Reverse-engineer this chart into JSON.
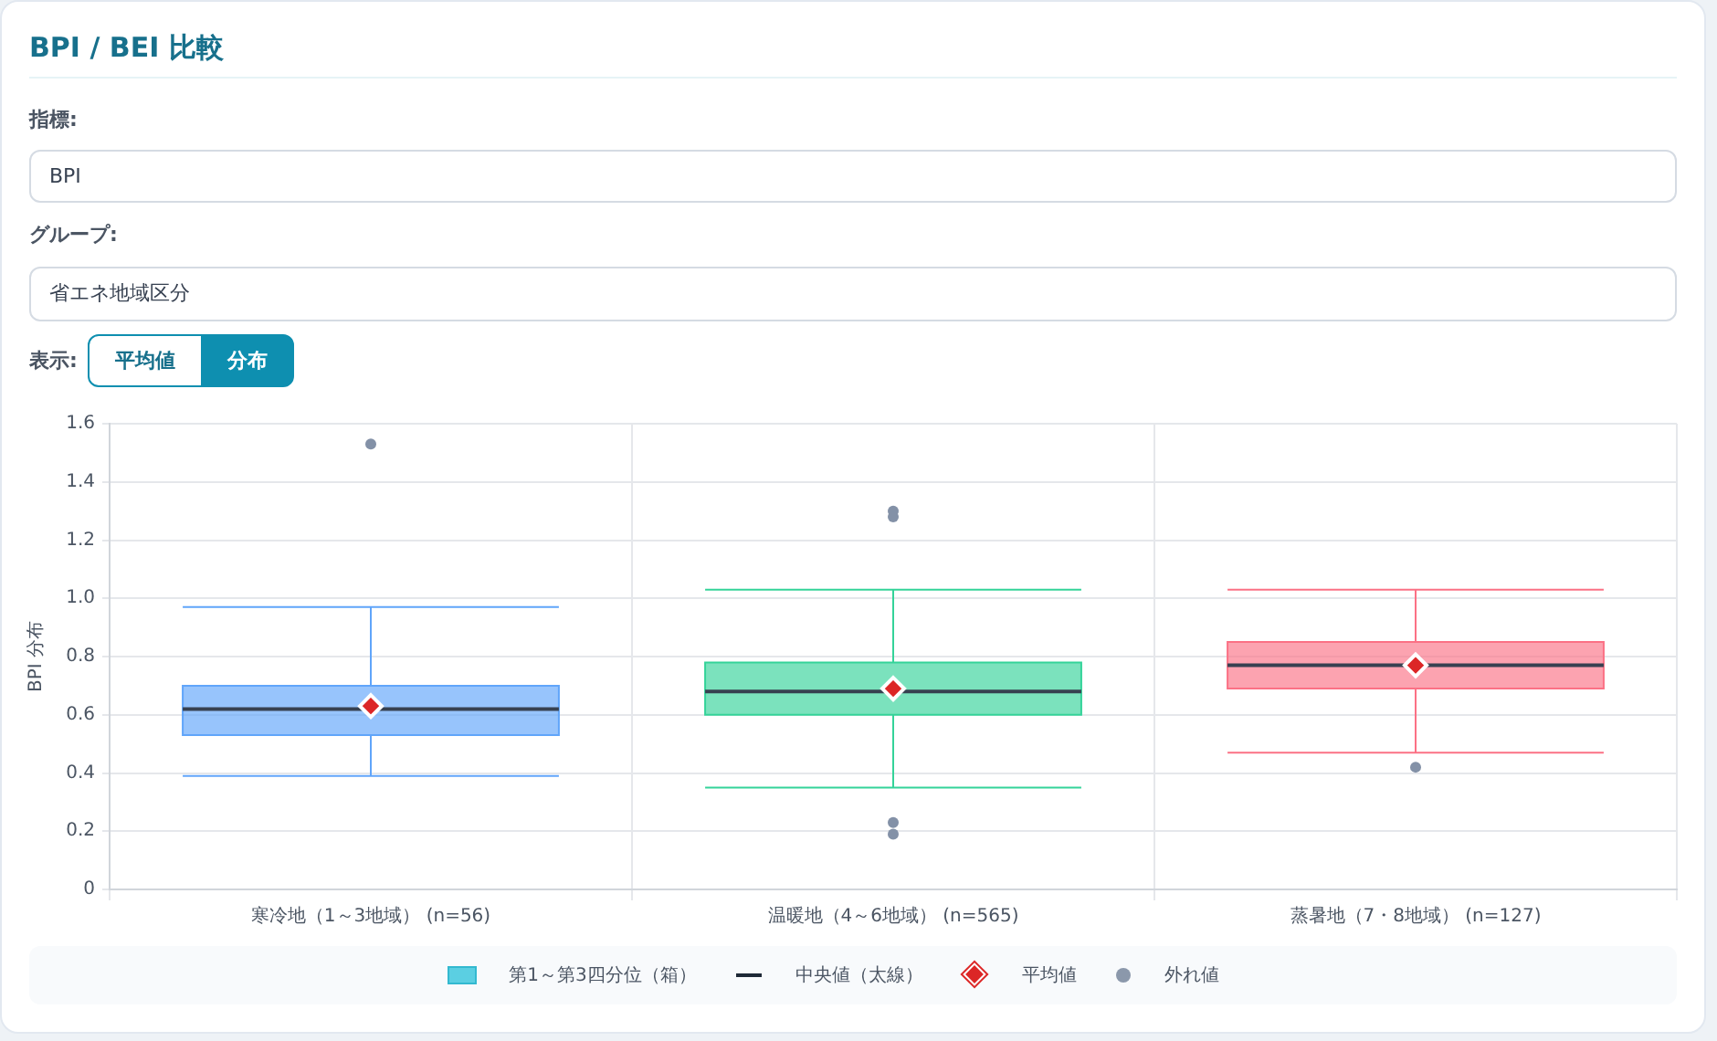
{
  "chart_data": {
    "type": "box",
    "title": "BPI / BEI 比較",
    "ylabel": "BPI 分布",
    "categories": [
      "寒冷地（1～3地域） (n=56)",
      "温暖地（4～6地域） (n=565)",
      "蒸暑地（7・8地域） (n=127)"
    ],
    "series": [
      {
        "colors": [
          "#60a5fa",
          "#34d399",
          "#fb7185"
        ],
        "boxes": [
          {
            "low": 0.39,
            "q1": 0.53,
            "median": 0.62,
            "q3": 0.7,
            "high": 0.97,
            "mean": 0.63,
            "outliers": [
              1.53
            ]
          },
          {
            "low": 0.35,
            "q1": 0.6,
            "median": 0.68,
            "q3": 0.78,
            "high": 1.03,
            "mean": 0.69,
            "outliers": [
              1.3,
              1.28,
              0.23,
              0.19
            ]
          },
          {
            "low": 0.47,
            "q1": 0.69,
            "median": 0.77,
            "q3": 0.85,
            "high": 1.03,
            "mean": 0.77,
            "outliers": [
              0.42
            ]
          }
        ]
      }
    ],
    "ylim": [
      0,
      1.6
    ],
    "yticks": [
      0,
      0.2,
      0.4,
      0.6,
      0.8,
      {
        "value": 1,
        "label": "1.0"
      },
      1.2,
      1.4,
      1.6
    ],
    "grid": true,
    "annotations": [
      "指標:",
      "BPI",
      "グループ:",
      "省エネ地域区分",
      "表示:",
      "平均値",
      "分布",
      "第1～第3四分位（箱）",
      "中央値（太線）",
      "平均値",
      "外れ値"
    ]
  }
}
